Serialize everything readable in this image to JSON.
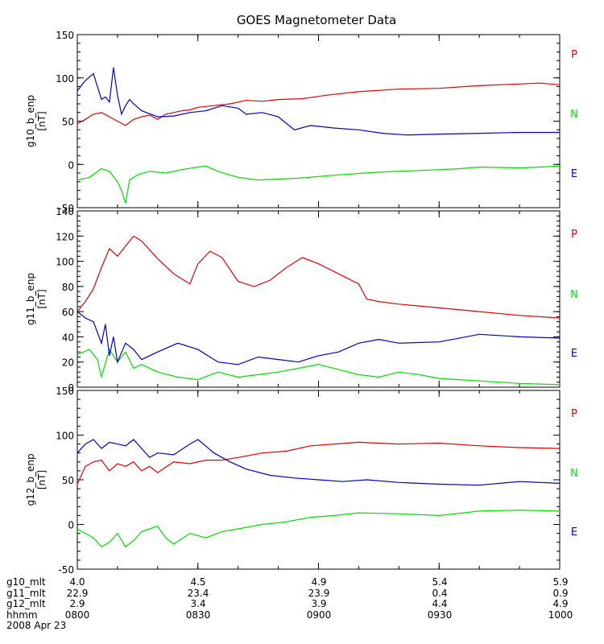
{
  "title": "GOES Magnetometer Data",
  "footer": {
    "rows": [
      {
        "label": "g10_mlt",
        "values": [
          "4.0",
          "4.5",
          "4.9",
          "5.4",
          "5.9"
        ]
      },
      {
        "label": "g11_mlt",
        "values": [
          "22.9",
          "23.4",
          "23.9",
          "0.4",
          "0.9"
        ]
      },
      {
        "label": "g12_mlt",
        "values": [
          "2.9",
          "3.4",
          "3.9",
          "4.4",
          "4.9"
        ]
      },
      {
        "label": "hhmm",
        "values": [
          "0800",
          "0830",
          "0900",
          "0930",
          "1000"
        ]
      }
    ],
    "date": "2008 Apr 23"
  },
  "colors": {
    "P": "#e00000",
    "N": "#00dd00",
    "E": "#0000cc",
    "axis": "#000000"
  },
  "chart_data": [
    {
      "type": "line",
      "ylabel": "g10_b_enp\n[nT]",
      "ylim": [
        -50,
        150
      ],
      "yticks": [
        -50,
        0,
        50,
        100,
        150
      ],
      "xlim": [
        0,
        120
      ],
      "xticks": [
        0,
        30,
        60,
        90,
        120
      ],
      "legend": [
        "P",
        "N",
        "E"
      ],
      "series": [
        {
          "name": "P",
          "color": "#e00000",
          "x": [
            0,
            2,
            4,
            6,
            8,
            10,
            12,
            14,
            16,
            18,
            20,
            22,
            24,
            26,
            28,
            30,
            34,
            38,
            42,
            46,
            50,
            56,
            62,
            70,
            80,
            90,
            100,
            110,
            115,
            120
          ],
          "values": [
            47,
            52,
            58,
            60,
            55,
            50,
            45,
            52,
            55,
            57,
            52,
            58,
            60,
            62,
            63,
            66,
            68,
            70,
            74,
            73,
            75,
            76,
            80,
            84,
            87,
            88,
            91,
            93,
            94,
            92
          ]
        },
        {
          "name": "N",
          "color": "#00dd00",
          "x": [
            0,
            3,
            6,
            8,
            10,
            11,
            12,
            13,
            15,
            18,
            22,
            26,
            30,
            32,
            35,
            40,
            45,
            55,
            65,
            75,
            85,
            95,
            100,
            110,
            120
          ],
          "values": [
            -18,
            -15,
            -5,
            -8,
            -20,
            -30,
            -45,
            -18,
            -12,
            -8,
            -10,
            -6,
            -3,
            -2,
            -8,
            -15,
            -18,
            -16,
            -12,
            -9,
            -7,
            -5,
            -3,
            -4,
            -2
          ]
        },
        {
          "name": "E",
          "color": "#0000cc",
          "x": [
            0,
            2,
            4,
            5,
            6,
            7,
            8,
            9,
            10,
            11,
            12,
            13,
            14,
            16,
            20,
            24,
            28,
            32,
            36,
            40,
            42,
            46,
            50,
            54,
            58,
            64,
            70,
            76,
            82,
            90,
            100,
            110,
            120
          ],
          "values": [
            85,
            97,
            105,
            90,
            75,
            78,
            72,
            112,
            80,
            58,
            68,
            75,
            70,
            62,
            55,
            56,
            60,
            62,
            68,
            65,
            58,
            60,
            55,
            40,
            45,
            42,
            40,
            36,
            34,
            35,
            36,
            37,
            37
          ]
        }
      ]
    },
    {
      "type": "line",
      "ylabel": "g11_b_enp\n[nT]",
      "ylim": [
        0,
        140
      ],
      "yticks": [
        0,
        20,
        40,
        60,
        80,
        100,
        120,
        140
      ],
      "xlim": [
        0,
        120
      ],
      "xticks": [
        0,
        30,
        60,
        90,
        120
      ],
      "legend": [
        "P",
        "N",
        "E"
      ],
      "series": [
        {
          "name": "P",
          "color": "#e00000",
          "x": [
            0,
            2,
            4,
            6,
            8,
            10,
            12,
            14,
            16,
            20,
            24,
            28,
            30,
            33,
            36,
            40,
            44,
            48,
            52,
            56,
            60,
            65,
            70,
            72,
            75,
            80,
            90,
            100,
            110,
            120
          ],
          "values": [
            60,
            68,
            78,
            95,
            110,
            104,
            112,
            120,
            116,
            102,
            90,
            82,
            98,
            108,
            103,
            84,
            80,
            85,
            95,
            103,
            98,
            90,
            82,
            70,
            68,
            66,
            63,
            60,
            57,
            55
          ]
        },
        {
          "name": "N",
          "color": "#00dd00",
          "x": [
            0,
            3,
            5,
            6,
            8,
            10,
            12,
            14,
            16,
            20,
            25,
            30,
            35,
            40,
            45,
            50,
            55,
            60,
            65,
            70,
            75,
            80,
            85,
            90,
            100,
            110,
            120
          ],
          "values": [
            26,
            30,
            22,
            8,
            30,
            20,
            28,
            15,
            18,
            12,
            8,
            6,
            12,
            8,
            10,
            12,
            15,
            18,
            14,
            10,
            8,
            12,
            10,
            7,
            5,
            3,
            2
          ]
        },
        {
          "name": "E",
          "color": "#0000cc",
          "x": [
            0,
            2,
            4,
            6,
            7,
            8,
            9,
            10,
            12,
            14,
            16,
            18,
            20,
            25,
            30,
            35,
            40,
            45,
            50,
            55,
            60,
            65,
            70,
            75,
            80,
            90,
            100,
            110,
            120
          ],
          "values": [
            60,
            55,
            52,
            35,
            50,
            25,
            40,
            20,
            35,
            30,
            22,
            25,
            28,
            35,
            30,
            20,
            18,
            24,
            22,
            20,
            25,
            28,
            35,
            38,
            35,
            36,
            42,
            40,
            39
          ]
        }
      ]
    },
    {
      "type": "line",
      "ylabel": "g12_b_enp\n[nT]",
      "ylim": [
        -50,
        150
      ],
      "yticks": [
        -50,
        0,
        50,
        100,
        150
      ],
      "xlim": [
        0,
        120
      ],
      "xticks": [
        0,
        30,
        60,
        90,
        120
      ],
      "legend": [
        "P",
        "N",
        "E"
      ],
      "series": [
        {
          "name": "P",
          "color": "#e00000",
          "x": [
            0,
            2,
            4,
            6,
            8,
            10,
            12,
            14,
            16,
            18,
            20,
            24,
            28,
            32,
            36,
            40,
            46,
            52,
            58,
            64,
            70,
            80,
            90,
            100,
            110,
            120
          ],
          "values": [
            45,
            65,
            70,
            72,
            60,
            68,
            65,
            70,
            60,
            65,
            58,
            70,
            68,
            72,
            72,
            75,
            80,
            82,
            88,
            90,
            92,
            90,
            91,
            88,
            86,
            85
          ]
        },
        {
          "name": "N",
          "color": "#00dd00",
          "x": [
            0,
            2,
            4,
            6,
            8,
            10,
            12,
            14,
            16,
            18,
            20,
            22,
            24,
            28,
            32,
            36,
            40,
            46,
            52,
            58,
            64,
            70,
            80,
            90,
            100,
            110,
            120
          ],
          "values": [
            -5,
            -10,
            -15,
            -25,
            -20,
            -10,
            -25,
            -18,
            -8,
            -5,
            -2,
            -15,
            -22,
            -10,
            -15,
            -8,
            -5,
            0,
            3,
            8,
            10,
            13,
            12,
            10,
            15,
            16,
            15
          ]
        },
        {
          "name": "E",
          "color": "#0000cc",
          "x": [
            0,
            2,
            4,
            6,
            8,
            10,
            12,
            14,
            16,
            18,
            20,
            24,
            28,
            30,
            34,
            38,
            42,
            48,
            54,
            60,
            66,
            72,
            80,
            90,
            100,
            110,
            120
          ],
          "values": [
            80,
            90,
            95,
            85,
            92,
            90,
            88,
            95,
            85,
            75,
            80,
            78,
            90,
            95,
            80,
            70,
            62,
            55,
            52,
            50,
            48,
            50,
            47,
            45,
            44,
            48,
            46
          ]
        }
      ]
    }
  ]
}
